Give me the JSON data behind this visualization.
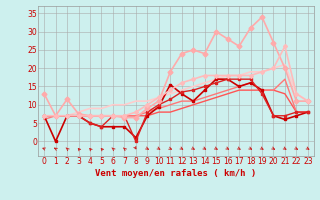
{
  "background_color": "#cdf0ee",
  "grid_color": "#aaaaaa",
  "xlabel": "Vent moyen/en rafales ( km/h )",
  "xlabel_color": "#cc0000",
  "tick_color": "#cc0000",
  "xlim": [
    -0.5,
    23.5
  ],
  "ylim": [
    -4,
    37
  ],
  "yticks": [
    0,
    5,
    10,
    15,
    20,
    25,
    30,
    35
  ],
  "xticks": [
    0,
    1,
    2,
    3,
    4,
    5,
    6,
    7,
    8,
    9,
    10,
    11,
    12,
    13,
    14,
    15,
    16,
    17,
    18,
    19,
    20,
    21,
    22,
    23
  ],
  "lines": [
    {
      "x": [
        0,
        1,
        2,
        3,
        4,
        5,
        6,
        7,
        8,
        9,
        10,
        11,
        12,
        13,
        14,
        15,
        16,
        17,
        18,
        19,
        20,
        21,
        22,
        23
      ],
      "y": [
        7,
        7,
        7,
        7,
        7,
        7,
        7,
        7,
        7,
        7,
        8,
        8,
        9,
        10,
        11,
        12,
        13,
        14,
        14,
        14,
        14,
        13,
        8,
        8
      ],
      "color": "#ff5555",
      "lw": 1.0,
      "marker": null,
      "ms": 0
    },
    {
      "x": [
        0,
        1,
        2,
        3,
        4,
        5,
        6,
        7,
        8,
        9,
        10,
        11,
        12,
        13,
        14,
        15,
        16,
        17,
        18,
        19,
        20,
        21,
        22,
        23
      ],
      "y": [
        7,
        0,
        7,
        7,
        5,
        4,
        4,
        4,
        1,
        7,
        9.5,
        15.5,
        13,
        11,
        14,
        17,
        17,
        15,
        16,
        14,
        7,
        6,
        7,
        8
      ],
      "color": "#cc0000",
      "lw": 1.2,
      "marker": "s",
      "ms": 2.0
    },
    {
      "x": [
        0,
        1,
        2,
        3,
        4,
        5,
        6,
        7,
        8,
        9,
        10,
        11,
        12,
        13,
        14,
        15,
        16,
        17,
        18,
        19,
        20,
        21,
        22,
        23
      ],
      "y": [
        7,
        7,
        7,
        7,
        5,
        4,
        7,
        7,
        0,
        8,
        10,
        11.5,
        13.5,
        14,
        15,
        16,
        17,
        17,
        17,
        13,
        7,
        7,
        8,
        8
      ],
      "color": "#dd2222",
      "lw": 1.0,
      "marker": "s",
      "ms": 2.0
    },
    {
      "x": [
        0,
        1,
        2,
        3,
        4,
        5,
        6,
        7,
        8,
        9,
        10,
        11,
        12,
        13,
        14,
        15,
        16,
        17,
        18,
        19,
        20,
        21,
        22,
        23
      ],
      "y": [
        6,
        7,
        7,
        7,
        7,
        7,
        7,
        7,
        7,
        8,
        9,
        10,
        11,
        11,
        12,
        13,
        14,
        15,
        16,
        14,
        14,
        17,
        8,
        8
      ],
      "color": "#ff7777",
      "lw": 1.0,
      "marker": null,
      "ms": 0
    },
    {
      "x": [
        0,
        1,
        2,
        3,
        4,
        5,
        6,
        7,
        8,
        9,
        10,
        11,
        12,
        13,
        14,
        15,
        16,
        17,
        18,
        19,
        20,
        21,
        22,
        23
      ],
      "y": [
        13,
        7,
        11.5,
        7.5,
        7,
        7,
        7,
        6.5,
        6.5,
        9,
        11,
        19,
        24,
        25,
        24,
        30,
        28,
        26,
        31,
        34,
        27,
        20,
        11,
        11
      ],
      "color": "#ffaaaa",
      "lw": 1.2,
      "marker": "D",
      "ms": 2.5
    },
    {
      "x": [
        0,
        1,
        2,
        3,
        4,
        5,
        6,
        7,
        8,
        9,
        10,
        11,
        12,
        13,
        14,
        15,
        16,
        17,
        18,
        19,
        20,
        21,
        22,
        23
      ],
      "y": [
        7,
        7,
        7,
        7,
        7,
        7,
        7,
        7,
        8,
        10,
        12,
        14,
        16,
        17,
        18,
        18,
        18,
        18,
        18,
        19,
        20,
        26,
        13,
        11
      ],
      "color": "#ffbbbb",
      "lw": 1.2,
      "marker": "D",
      "ms": 2.0
    },
    {
      "x": [
        0,
        1,
        2,
        3,
        4,
        5,
        6,
        7,
        8,
        9,
        10,
        11,
        12,
        13,
        14,
        15,
        16,
        17,
        18,
        19,
        20,
        21,
        22,
        23
      ],
      "y": [
        7,
        7,
        7,
        8,
        9,
        9,
        10,
        10,
        11,
        11,
        12,
        13,
        14,
        15,
        16,
        17,
        18,
        18,
        19,
        19,
        20,
        21,
        13,
        11
      ],
      "color": "#ffcccc",
      "lw": 1.2,
      "marker": null,
      "ms": 0
    }
  ],
  "arrows": {
    "color": "#cc2222",
    "angles_deg": [
      220,
      210,
      200,
      195,
      195,
      195,
      200,
      200,
      10,
      30,
      30,
      35,
      30,
      30,
      30,
      30,
      30,
      30,
      30,
      30,
      30,
      30,
      30,
      30
    ]
  }
}
